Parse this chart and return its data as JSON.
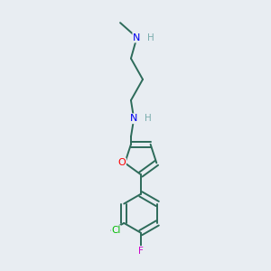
{
  "background_color": "#e8edf2",
  "bond_color": "#2d6b5a",
  "atom_colors": {
    "N": "#0000ee",
    "H": "#7aadad",
    "O": "#ff0000",
    "Cl": "#00bb00",
    "F": "#cc00cc",
    "C": "#2d6b5a"
  },
  "figsize": [
    3.0,
    3.0
  ],
  "dpi": 100
}
